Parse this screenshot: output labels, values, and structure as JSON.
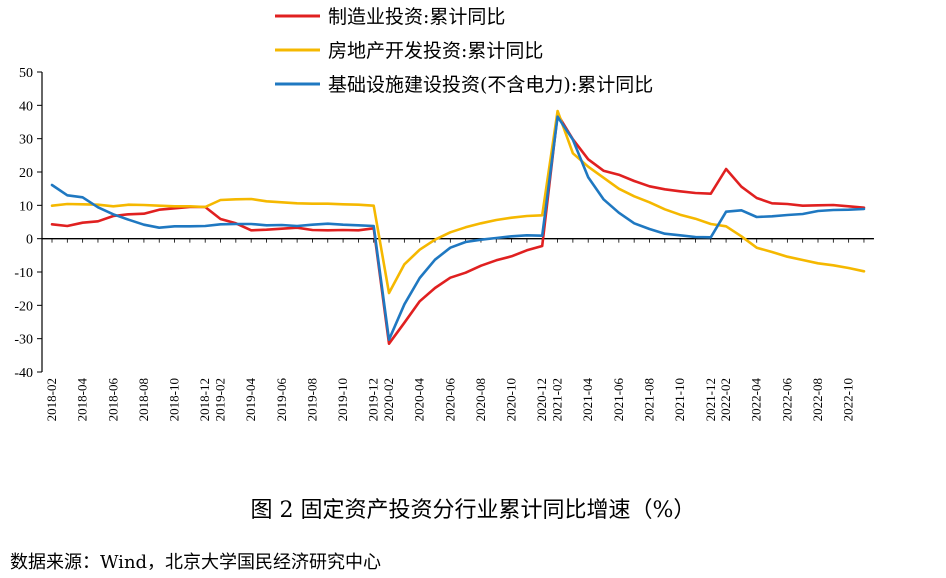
{
  "chart_data": {
    "type": "line",
    "title": "图 2 固定资产投资分行业累计同比增速（%）",
    "source": "数据来源：Wind，北京大学国民经济研究中心",
    "ylim": [
      -40,
      50
    ],
    "yticks": [
      -40,
      -30,
      -20,
      -10,
      0,
      10,
      20,
      30,
      40,
      50
    ],
    "x": [
      "2018-02",
      "2018-03",
      "2018-04",
      "2018-05",
      "2018-06",
      "2018-07",
      "2018-08",
      "2018-09",
      "2018-10",
      "2018-11",
      "2018-12",
      "2019-02",
      "2019-03",
      "2019-04",
      "2019-05",
      "2019-06",
      "2019-07",
      "2019-08",
      "2019-09",
      "2019-10",
      "2019-11",
      "2019-12",
      "2020-02",
      "2020-03",
      "2020-04",
      "2020-05",
      "2020-06",
      "2020-07",
      "2020-08",
      "2020-09",
      "2020-10",
      "2020-11",
      "2020-12",
      "2021-02",
      "2021-03",
      "2021-04",
      "2021-05",
      "2021-06",
      "2021-07",
      "2021-08",
      "2021-09",
      "2021-10",
      "2021-11",
      "2021-12",
      "2022-02",
      "2022-03",
      "2022-04",
      "2022-05",
      "2022-06",
      "2022-07",
      "2022-08",
      "2022-09",
      "2022-10",
      "2022-11"
    ],
    "xtick_labels": [
      "2018-02",
      "2018-04",
      "2018-06",
      "2018-08",
      "2018-10",
      "2018-12",
      "2019-02",
      "2019-04",
      "2019-06",
      "2019-08",
      "2019-10",
      "2019-12",
      "2020-02",
      "2020-04",
      "2020-06",
      "2020-08",
      "2020-10",
      "2020-12",
      "2021-02",
      "2021-04",
      "2021-06",
      "2021-08",
      "2021-10",
      "2021-12",
      "2022-02",
      "2022-04",
      "2022-06",
      "2022-08",
      "2022-10"
    ],
    "legend_position": "top-left",
    "series": [
      {
        "name": "制造业投资:累计同比",
        "color": "#e02020",
        "values": [
          4.3,
          3.8,
          4.8,
          5.2,
          6.8,
          7.3,
          7.5,
          8.7,
          9.1,
          9.5,
          9.5,
          5.9,
          4.6,
          2.5,
          2.7,
          3.0,
          3.3,
          2.6,
          2.5,
          2.6,
          2.5,
          3.1,
          -31.5,
          -25.2,
          -18.8,
          -14.8,
          -11.7,
          -10.2,
          -8.1,
          -6.5,
          -5.3,
          -3.5,
          -2.2,
          37.3,
          29.8,
          23.8,
          20.4,
          19.2,
          17.3,
          15.7,
          14.8,
          14.2,
          13.7,
          13.5,
          20.9,
          15.6,
          12.2,
          10.6,
          10.4,
          9.9,
          10.0,
          10.1,
          9.7,
          9.3
        ]
      },
      {
        "name": "房地产开发投资:累计同比",
        "color": "#f5b800",
        "values": [
          9.9,
          10.4,
          10.3,
          10.2,
          9.7,
          10.2,
          10.1,
          9.9,
          9.7,
          9.7,
          9.5,
          11.6,
          11.8,
          11.9,
          11.2,
          10.9,
          10.6,
          10.5,
          10.5,
          10.3,
          10.2,
          9.9,
          -16.3,
          -7.7,
          -3.3,
          -0.3,
          1.9,
          3.4,
          4.6,
          5.6,
          6.3,
          6.8,
          7.0,
          38.3,
          25.6,
          21.6,
          18.3,
          15.0,
          12.7,
          10.9,
          8.8,
          7.2,
          6.0,
          4.4,
          3.7,
          0.7,
          -2.7,
          -4.0,
          -5.4,
          -6.4,
          -7.4,
          -8.0,
          -8.8,
          -9.8
        ]
      },
      {
        "name": "基础设施建设投资(不含电力):累计同比",
        "color": "#1f78c1",
        "values": [
          16.1,
          13.0,
          12.4,
          9.4,
          7.3,
          5.7,
          4.2,
          3.3,
          3.7,
          3.7,
          3.8,
          4.3,
          4.4,
          4.4,
          4.0,
          4.1,
          3.8,
          4.2,
          4.5,
          4.2,
          4.0,
          3.8,
          -30.3,
          -19.7,
          -11.8,
          -6.3,
          -2.7,
          -1.0,
          -0.3,
          0.2,
          0.7,
          1.0,
          0.9,
          36.6,
          29.7,
          18.4,
          11.8,
          7.8,
          4.6,
          2.9,
          1.5,
          1.0,
          0.5,
          0.4,
          8.1,
          8.5,
          6.5,
          6.7,
          7.1,
          7.4,
          8.3,
          8.6,
          8.7,
          8.9
        ]
      }
    ]
  }
}
